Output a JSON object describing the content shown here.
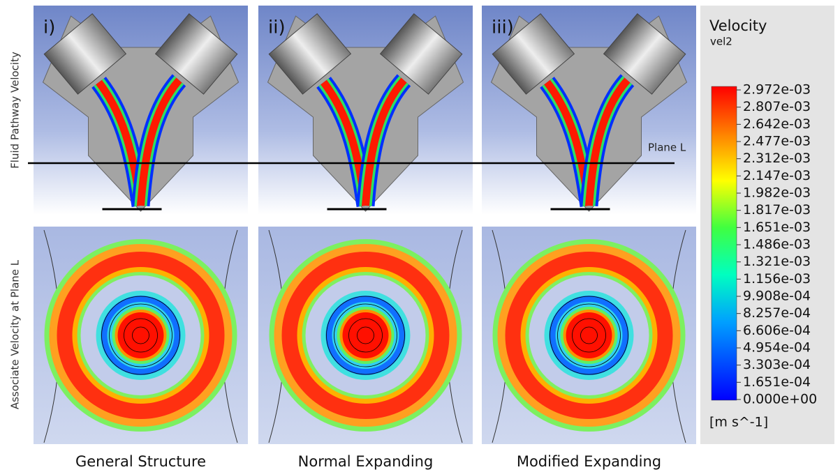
{
  "panels": [
    {
      "label": "i)",
      "caption": "General Structure"
    },
    {
      "label": "ii)",
      "caption": "Normal Expanding"
    },
    {
      "label": "iii)",
      "caption": "Modified Expanding"
    }
  ],
  "row_labels": [
    "Fluid Pathway Velocity",
    "Associate Velocity at Plane L"
  ],
  "plane_label": "Plane L",
  "legend": {
    "title": "Velocity",
    "variable": "vel2",
    "ticks": [
      "2.972e-03",
      "2.807e-03",
      "2.642e-03",
      "2.477e-03",
      "2.312e-03",
      "2.147e-03",
      "1.982e-03",
      "1.817e-03",
      "1.651e-03",
      "1.486e-03",
      "1.321e-03",
      "1.156e-03",
      "9.908e-04",
      "8.257e-04",
      "6.606e-04",
      "4.954e-04",
      "3.303e-04",
      "1.651e-04",
      "0.000e+00"
    ],
    "unit": "[m s^-1]"
  }
}
